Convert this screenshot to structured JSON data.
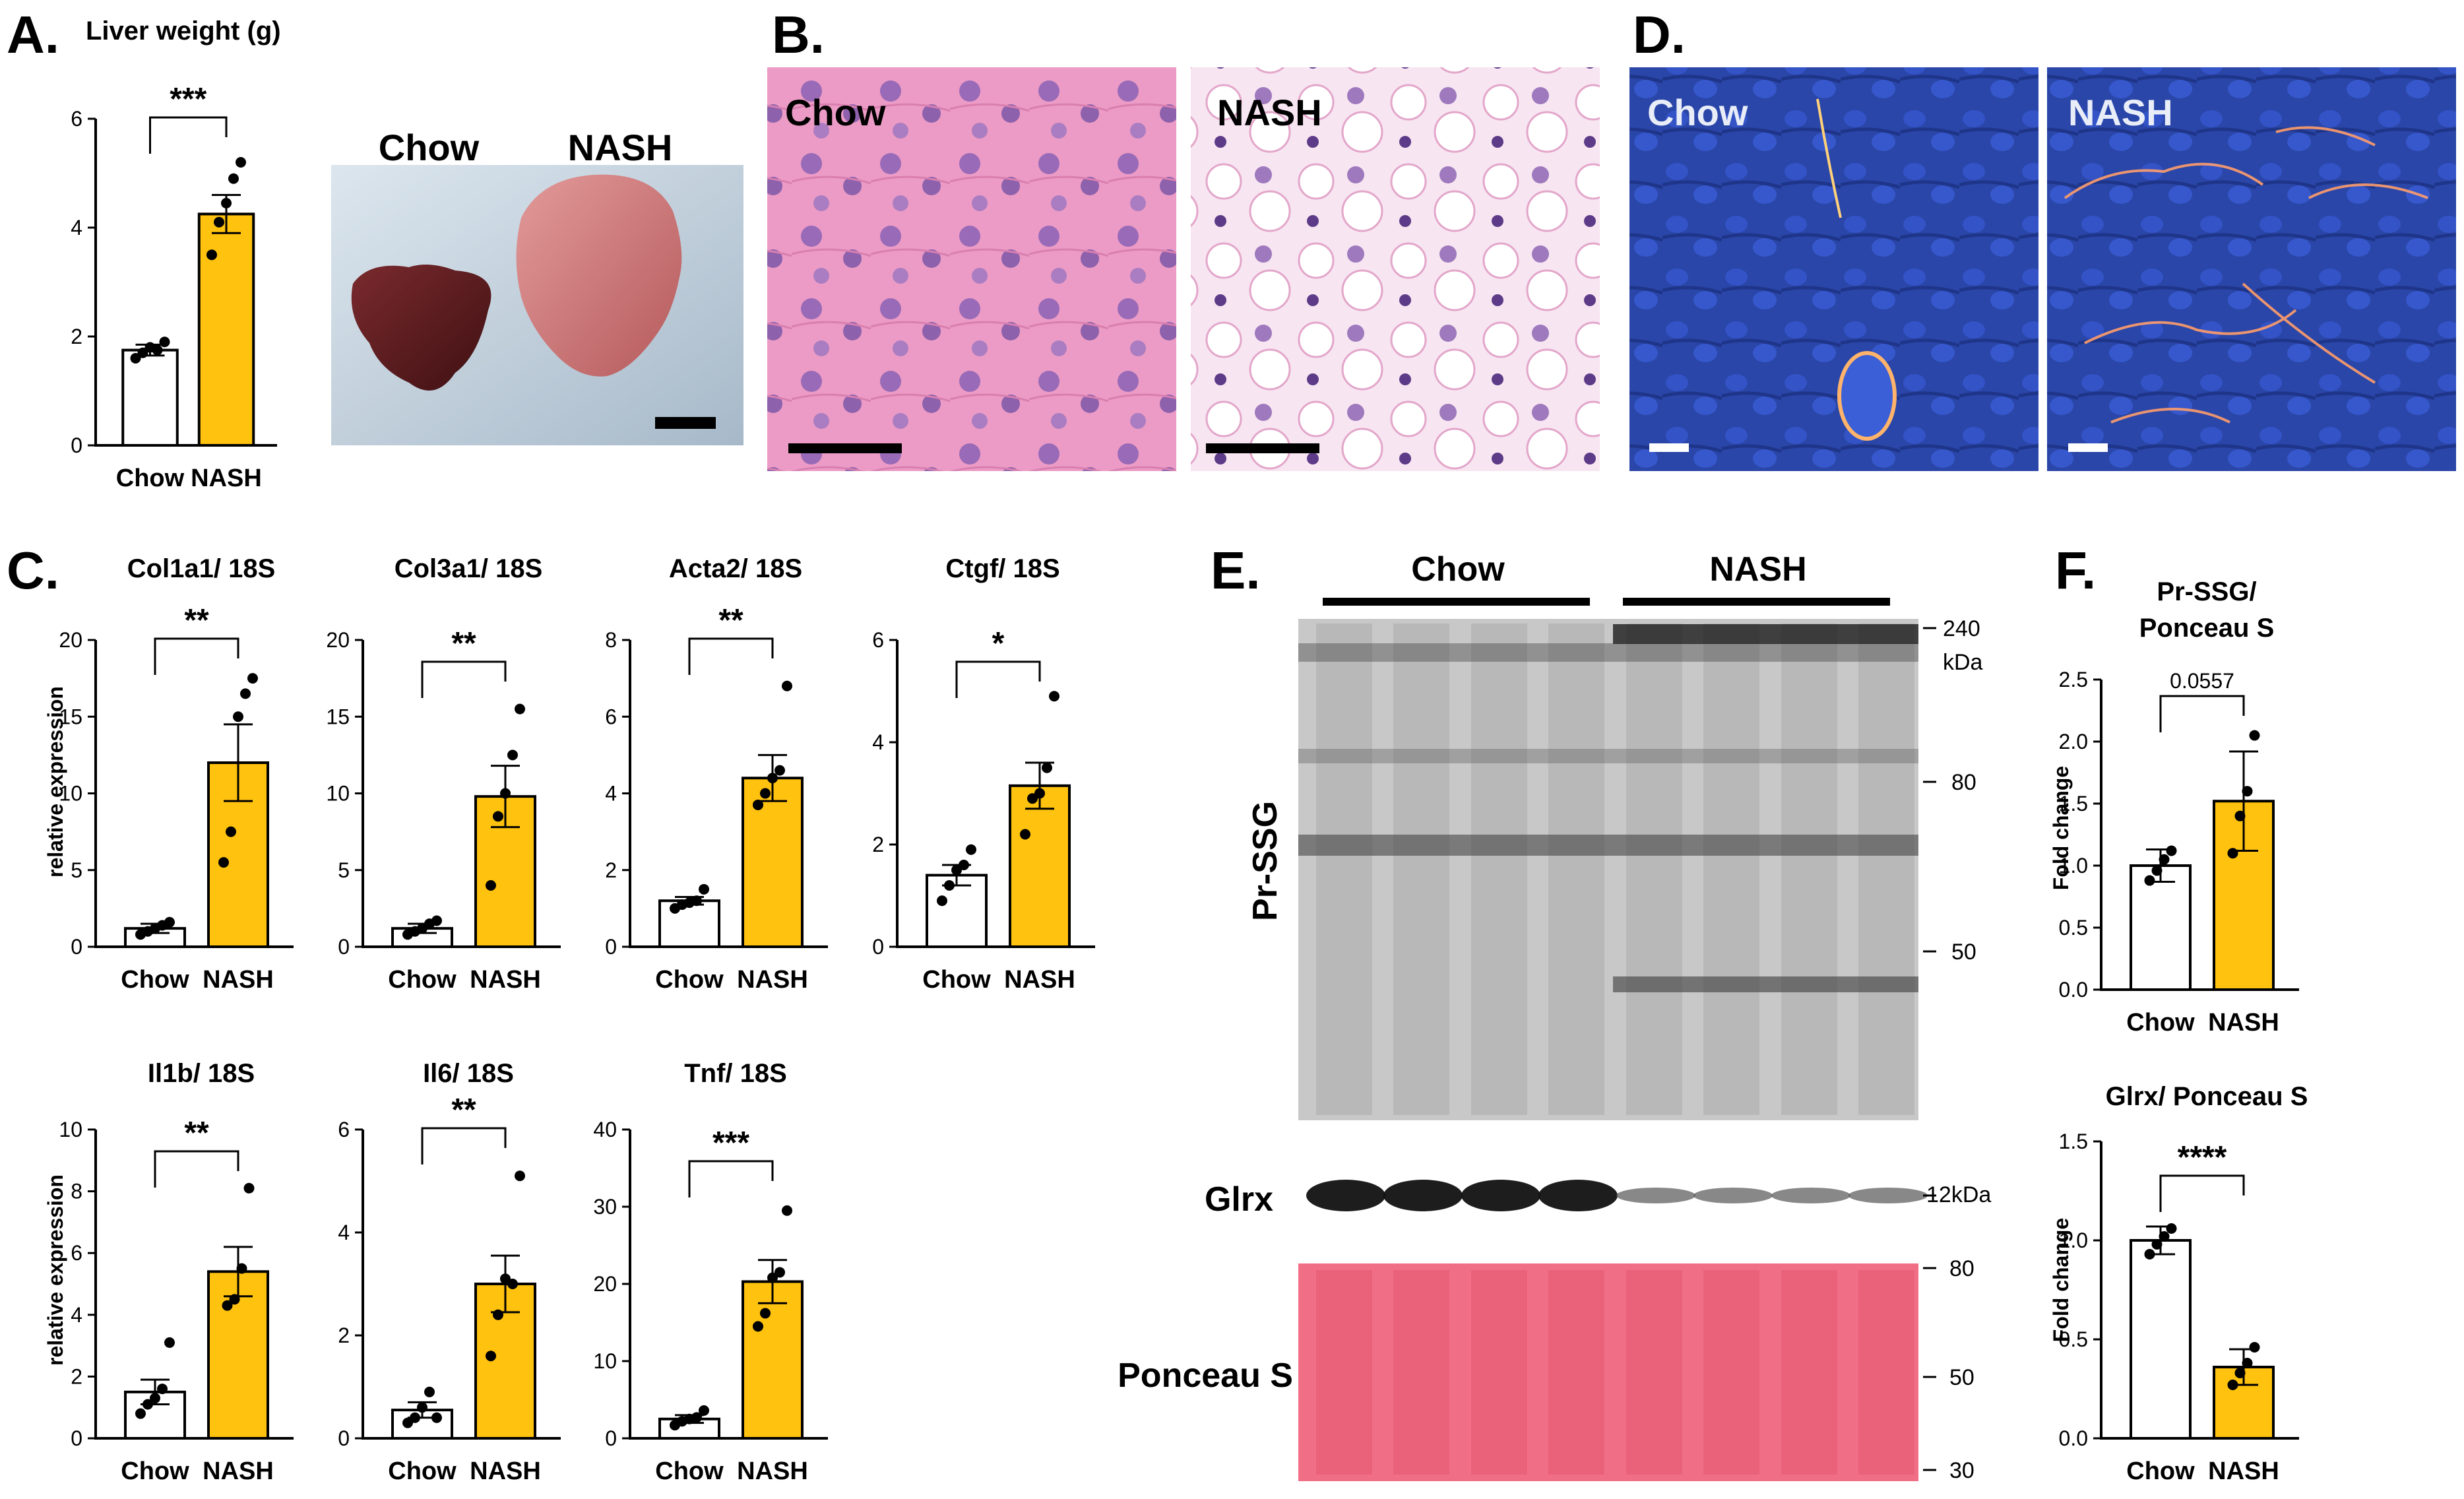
{
  "colors": {
    "chow_fill": "#ffffff",
    "nash_fill": "#FFC20E",
    "axis": "#000000"
  },
  "panels": {
    "A": {
      "letter": "A.",
      "photo_labels": [
        "Chow",
        "NASH"
      ]
    },
    "B": {
      "letter": "B.",
      "labels": [
        "Chow",
        "NASH"
      ]
    },
    "C": {
      "letter": "C.",
      "ylabel": "relative expression"
    },
    "D": {
      "letter": "D.",
      "labels": [
        "Chow",
        "NASH"
      ]
    },
    "E": {
      "letter": "E.",
      "group_labels": [
        "Chow",
        "NASH"
      ],
      "blot_labels": [
        "Pr-SSG",
        "Glrx",
        "Ponceau S"
      ],
      "mw_top": [
        "240\nkDa",
        "80",
        "50"
      ],
      "mw_glrx": "12kDa",
      "mw_ponceau": [
        "80",
        "50",
        "30"
      ]
    },
    "F": {
      "letter": "F.",
      "ylabel": "Fold change"
    }
  },
  "chart_data": [
    {
      "id": "liver-weight",
      "type": "bar",
      "title": "Liver weight (g)",
      "categories": [
        "Chow",
        "NASH"
      ],
      "values": [
        1.75,
        4.25
      ],
      "errors": [
        0.1,
        0.35
      ],
      "ylim": [
        0,
        6
      ],
      "yticks": [
        "0",
        "2",
        "4",
        "6"
      ],
      "points": [
        [
          1.6,
          1.7,
          1.8,
          1.75,
          1.9
        ],
        [
          3.5,
          4.1,
          4.45,
          4.9,
          5.2
        ]
      ],
      "sig": "***"
    },
    {
      "id": "col1a1",
      "type": "bar",
      "title": "Col1a1/ 18S",
      "categories": [
        "Chow",
        "NASH"
      ],
      "values": [
        1.2,
        12.0
      ],
      "errors": [
        0.3,
        2.5
      ],
      "ylim": [
        0,
        20
      ],
      "yticks": [
        "0",
        "5",
        "10",
        "15",
        "20"
      ],
      "points": [
        [
          0.8,
          1.0,
          1.2,
          1.4,
          1.6
        ],
        [
          5.5,
          7.5,
          15.0,
          16.5,
          17.5
        ]
      ],
      "sig": "**"
    },
    {
      "id": "col3a1",
      "type": "bar",
      "title": "Col3a1/ 18S",
      "categories": [
        "Chow",
        "NASH"
      ],
      "values": [
        1.2,
        9.8
      ],
      "errors": [
        0.3,
        2.0
      ],
      "ylim": [
        0,
        20
      ],
      "yticks": [
        "0",
        "5",
        "10",
        "15",
        "20"
      ],
      "points": [
        [
          0.8,
          1.0,
          1.2,
          1.5,
          1.7
        ],
        [
          4.0,
          8.5,
          10.0,
          12.5,
          15.5
        ]
      ],
      "sig": "**"
    },
    {
      "id": "acta2",
      "type": "bar",
      "title": "Acta2/ 18S",
      "categories": [
        "Chow",
        "NASH"
      ],
      "values": [
        1.2,
        4.4
      ],
      "errors": [
        0.1,
        0.6
      ],
      "ylim": [
        0,
        8
      ],
      "yticks": [
        "0",
        "2",
        "4",
        "6",
        "8"
      ],
      "points": [
        [
          1.0,
          1.1,
          1.15,
          1.2,
          1.5
        ],
        [
          3.7,
          4.0,
          4.4,
          4.6,
          6.8
        ]
      ],
      "sig": "**"
    },
    {
      "id": "ctgf",
      "type": "bar",
      "title": "Ctgf/ 18S",
      "categories": [
        "Chow",
        "NASH"
      ],
      "values": [
        1.4,
        3.15
      ],
      "errors": [
        0.2,
        0.45
      ],
      "ylim": [
        0,
        6
      ],
      "yticks": [
        "0",
        "2",
        "4",
        "6"
      ],
      "points": [
        [
          0.9,
          1.2,
          1.5,
          1.6,
          1.9
        ],
        [
          2.2,
          2.9,
          3.0,
          3.5,
          4.9
        ]
      ],
      "sig": "*"
    },
    {
      "id": "il1b",
      "type": "bar",
      "title": "Il1b/ 18S",
      "categories": [
        "Chow",
        "NASH"
      ],
      "values": [
        1.5,
        5.4
      ],
      "errors": [
        0.4,
        0.8
      ],
      "ylim": [
        0,
        10
      ],
      "yticks": [
        "0",
        "2",
        "4",
        "6",
        "8",
        "10"
      ],
      "points": [
        [
          0.8,
          1.1,
          1.3,
          1.6,
          3.1
        ],
        [
          4.3,
          4.5,
          5.5,
          8.1
        ]
      ],
      "sig": "**"
    },
    {
      "id": "il6",
      "type": "bar",
      "title": "Il6/ 18S",
      "categories": [
        "Chow",
        "NASH"
      ],
      "values": [
        0.55,
        3.0
      ],
      "errors": [
        0.15,
        0.55
      ],
      "ylim": [
        0,
        6
      ],
      "yticks": [
        "0",
        "2",
        "4",
        "6"
      ],
      "points": [
        [
          0.3,
          0.4,
          0.6,
          0.9,
          0.4
        ],
        [
          1.6,
          2.4,
          3.1,
          3.0,
          5.1
        ]
      ],
      "sig": "**"
    },
    {
      "id": "tnf",
      "type": "bar",
      "title": "Tnf/ 18S",
      "categories": [
        "Chow",
        "NASH"
      ],
      "values": [
        2.5,
        20.3
      ],
      "errors": [
        0.5,
        2.8
      ],
      "ylim": [
        0,
        40
      ],
      "yticks": [
        "0",
        "10",
        "20",
        "30",
        "40"
      ],
      "points": [
        [
          1.7,
          2.2,
          2.5,
          2.7,
          3.6
        ],
        [
          14.5,
          16.2,
          20.8,
          21.5,
          29.5
        ]
      ],
      "sig": "***"
    },
    {
      "id": "pr-ssg",
      "type": "bar",
      "title": "Pr-SSG/\nPonceau S",
      "categories": [
        "Chow",
        "NASH"
      ],
      "values": [
        1.0,
        1.52
      ],
      "errors": [
        0.13,
        0.4
      ],
      "ylim": [
        0,
        2.5
      ],
      "yticks": [
        "0.0",
        "0.5",
        "1.0",
        "1.5",
        "2.0",
        "2.5"
      ],
      "points": [
        [
          0.88,
          0.96,
          1.05,
          1.12
        ],
        [
          1.1,
          1.4,
          1.6,
          2.05
        ]
      ],
      "sig": "0.0557",
      "sig_is_number": true
    },
    {
      "id": "glrx",
      "type": "bar",
      "title": "Glrx/ Ponceau S",
      "categories": [
        "Chow",
        "NASH"
      ],
      "values": [
        1.0,
        0.36
      ],
      "errors": [
        0.07,
        0.09
      ],
      "ylim": [
        0,
        1.5
      ],
      "yticks": [
        "0.0",
        "0.5",
        "1.0",
        "1.5"
      ],
      "points": [
        [
          0.93,
          0.98,
          1.02,
          1.06
        ],
        [
          0.27,
          0.33,
          0.38,
          0.46
        ]
      ],
      "sig": "****"
    }
  ]
}
